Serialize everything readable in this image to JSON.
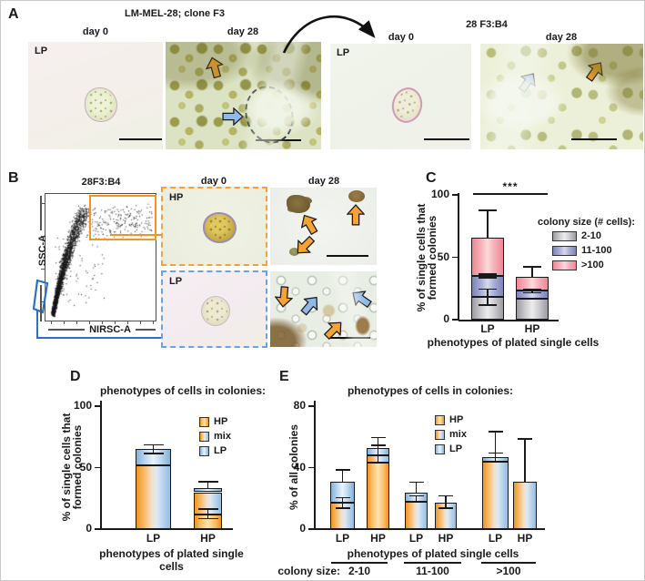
{
  "panels": {
    "a": {
      "label": "A",
      "left_title": "LM-MEL-28; clone F3",
      "right_title": "28 F3:B4",
      "day0": "day 0",
      "day28": "day 28",
      "lp": "LP"
    },
    "b": {
      "label": "B",
      "plot_title": "28F3:B4",
      "y_axis": "SSC-A",
      "x_axis": "NIRSC-A",
      "day0": "day 0",
      "day28": "day 28",
      "hp": "HP",
      "lp": "LP"
    },
    "c": {
      "label": "C"
    },
    "d": {
      "label": "D"
    },
    "e": {
      "label": "E"
    }
  },
  "chart_data": [
    {
      "id": "C",
      "type": "bar",
      "stacked": true,
      "ylabel_lines": [
        "% of single cells that",
        "formed colonies"
      ],
      "xlabel": "phenotypes of plated single cells",
      "ymax": 100,
      "yticks": [
        0,
        50,
        100
      ],
      "legend_title": "colony size (# cells):",
      "categories": [
        "LP",
        "HP"
      ],
      "series": [
        {
          "name": "2-10",
          "color_key": "g",
          "values": [
            18,
            17
          ]
        },
        {
          "name": "11-100",
          "color_key": "b",
          "values": [
            17,
            6
          ]
        },
        {
          "name": ">100",
          "color_key": "p",
          "values": [
            31,
            11
          ]
        }
      ],
      "totals": [
        66,
        34
      ],
      "error_bars": [
        {
          "bar_index": 0,
          "at": 18,
          "plus": 7,
          "minus": 7
        },
        {
          "bar_index": 0,
          "at": 35,
          "plus": 2,
          "minus": 2
        },
        {
          "bar_index": 0,
          "at": 66,
          "plus": 22,
          "minus": 0
        },
        {
          "bar_index": 1,
          "at": 23,
          "plus": 2,
          "minus": 2
        },
        {
          "bar_index": 1,
          "at": 34,
          "plus": 9,
          "minus": 0
        }
      ],
      "significance": {
        "label": "***",
        "between": [
          "LP",
          "HP"
        ]
      }
    },
    {
      "id": "D",
      "type": "bar",
      "stacked": true,
      "title": "phenotypes of cells in colonies:",
      "ylabel_lines": [
        "% of single cells that",
        "formed colonies"
      ],
      "xlabel": "phenotypes of plated single cells",
      "ymax": 100,
      "yticks": [
        0,
        50,
        100
      ],
      "categories": [
        "LP",
        "HP"
      ],
      "series": [
        {
          "name": "HP",
          "color_key": "hp",
          "values": [
            0,
            12
          ]
        },
        {
          "name": "mix",
          "color_key": "mix",
          "values": [
            52,
            18
          ]
        },
        {
          "name": "LP",
          "color_key": "lp",
          "values": [
            13,
            3
          ]
        }
      ],
      "totals": [
        65,
        33
      ],
      "error_bars": [
        {
          "bar_index": 0,
          "at": 52,
          "plus": 0,
          "minus": 1
        },
        {
          "bar_index": 0,
          "at": 65,
          "plus": 4,
          "minus": 4
        },
        {
          "bar_index": 1,
          "at": 12,
          "plus": 5,
          "minus": 4
        },
        {
          "bar_index": 1,
          "at": 33,
          "plus": 6,
          "minus": 0
        }
      ]
    },
    {
      "id": "E",
      "type": "bar",
      "stacked": true,
      "title": "phenotypes of cells in colonies:",
      "ylabel": "% of all colonies",
      "xlabel": "phenotypes of plated single cells",
      "ymax": 80,
      "yticks": [
        0,
        40,
        80
      ],
      "colony_size_label": "colony size:",
      "group_labels": [
        "2-10",
        "11-100",
        ">100"
      ],
      "categories": [
        "LP",
        "HP",
        "LP",
        "HP",
        "LP",
        "HP"
      ],
      "series": [
        {
          "name": "HP",
          "color_key": "hp",
          "values": [
            0,
            43,
            0,
            0,
            0,
            0
          ]
        },
        {
          "name": "mix",
          "color_key": "mix",
          "values": [
            17,
            5,
            18,
            17,
            44,
            31
          ]
        },
        {
          "name": "LP",
          "color_key": "lp",
          "values": [
            14,
            5,
            6,
            0,
            3,
            0
          ]
        }
      ],
      "totals": [
        31,
        53,
        24,
        17,
        47,
        31
      ],
      "error_bars": [
        {
          "bar_index": 0,
          "at": 17,
          "plus": 4,
          "minus": 4
        },
        {
          "bar_index": 0,
          "at": 31,
          "plus": 8,
          "minus": 0
        },
        {
          "bar_index": 1,
          "at": 48,
          "plus": 7,
          "minus": 5
        },
        {
          "bar_index": 1,
          "at": 53,
          "plus": 7,
          "minus": 0
        },
        {
          "bar_index": 2,
          "at": 18,
          "plus": 4,
          "minus": 0
        },
        {
          "bar_index": 2,
          "at": 24,
          "plus": 7,
          "minus": 0
        },
        {
          "bar_index": 3,
          "at": 17,
          "plus": 5,
          "minus": 4
        },
        {
          "bar_index": 4,
          "at": 44,
          "plus": 6,
          "minus": 0
        },
        {
          "bar_index": 4,
          "at": 47,
          "plus": 17,
          "minus": 0
        },
        {
          "bar_index": 5,
          "at": 31,
          "plus": 28,
          "minus": 0
        }
      ]
    }
  ],
  "colors": {
    "hp_orange": "#F49B33",
    "lp_blue": "#A9C9E9",
    "colony_2_10_gray": "#C6C6CA",
    "colony_11_100_blue": "#9297C9",
    "colony_over100_pink": "#F3A2AB",
    "gate_orange": "#EE9428",
    "gate_blue": "#2F6FC0",
    "arrow_orange": "#F5A336",
    "arrow_blue": "#8FBAE8"
  }
}
